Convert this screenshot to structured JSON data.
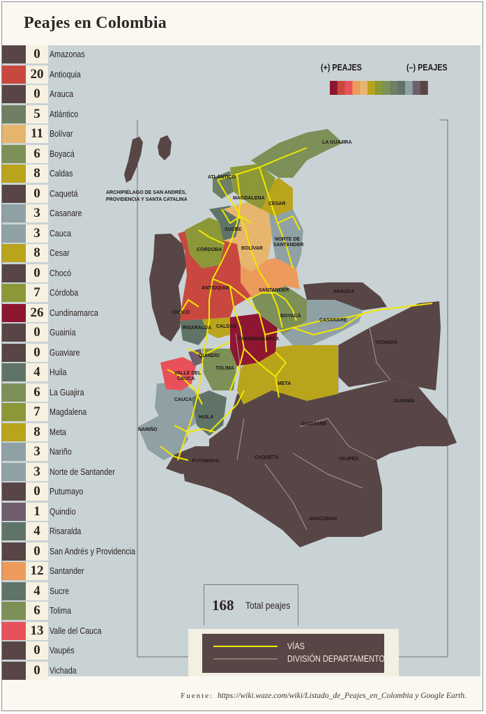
{
  "title": "Peajes en Colombia",
  "departments": [
    {
      "name": "Amazonas",
      "value": "0",
      "color": "#574645"
    },
    {
      "name": "Antioquia",
      "value": "20",
      "color": "#c8483f"
    },
    {
      "name": "Arauca",
      "value": "0",
      "color": "#574645"
    },
    {
      "name": "Atlántico",
      "value": "5",
      "color": "#6e7f63"
    },
    {
      "name": "Bolívar",
      "value": "11",
      "color": "#e7b66e"
    },
    {
      "name": "Boyacá",
      "value": "6",
      "color": "#7d9058"
    },
    {
      "name": "Caldas",
      "value": "8",
      "color": "#b9a41c"
    },
    {
      "name": "Caquetá",
      "value": "0",
      "color": "#574645"
    },
    {
      "name": "Casanare",
      "value": "3",
      "color": "#8fa1a4"
    },
    {
      "name": "Cauca",
      "value": "3",
      "color": "#8fa1a4"
    },
    {
      "name": "Cesar",
      "value": "8",
      "color": "#b9a41c"
    },
    {
      "name": "Chocó",
      "value": "0",
      "color": "#574645"
    },
    {
      "name": "Córdoba",
      "value": "7",
      "color": "#8c9838"
    },
    {
      "name": "Cundinamarca",
      "value": "26",
      "color": "#8d1631"
    },
    {
      "name": "Guainía",
      "value": "0",
      "color": "#574645"
    },
    {
      "name": "Guaviare",
      "value": "0",
      "color": "#574645"
    },
    {
      "name": "Huila",
      "value": "4",
      "color": "#5f7467"
    },
    {
      "name": "La Guajira",
      "value": "6",
      "color": "#7d9058"
    },
    {
      "name": "Magdalena",
      "value": "7",
      "color": "#8c9838"
    },
    {
      "name": "Meta",
      "value": "8",
      "color": "#b9a41c"
    },
    {
      "name": "Nariño",
      "value": "3",
      "color": "#8fa1a4"
    },
    {
      "name": "Norte de Santander",
      "value": "3",
      "color": "#8fa1a4"
    },
    {
      "name": "Putumayo",
      "value": "0",
      "color": "#574645"
    },
    {
      "name": "Quindío",
      "value": "1",
      "color": "#6e5e6e"
    },
    {
      "name": "Risaralda",
      "value": "4",
      "color": "#5f7467"
    },
    {
      "name": "San Andrés y Providencia",
      "value": "0",
      "color": "#574645"
    },
    {
      "name": "Santander",
      "value": "12",
      "color": "#ed9b5c"
    },
    {
      "name": "Sucre",
      "value": "4",
      "color": "#5f7467"
    },
    {
      "name": "Tolima",
      "value": "6",
      "color": "#7d9058"
    },
    {
      "name": "Valle del Cauca",
      "value": "13",
      "color": "#e8515a"
    },
    {
      "name": "Vaupés",
      "value": "0",
      "color": "#574645"
    },
    {
      "name": "Vichada",
      "value": "0",
      "color": "#574645"
    }
  ],
  "scale": {
    "more_label": "(+) PEAJES",
    "less_label": "(–) PEAJES",
    "colors": [
      "#8d1631",
      "#c8483f",
      "#e8515a",
      "#ed9b5c",
      "#e7b66e",
      "#b9a41c",
      "#8c9838",
      "#7d9058",
      "#6e7f63",
      "#5f7467",
      "#8fa1a4",
      "#6e5e6e",
      "#574645"
    ]
  },
  "map_labels": {
    "la_guajira": "LA GUAJIRA",
    "atlantico": "ATLÁNTICO",
    "archipielago_1": "ARCHIPIÉLAGO DE SAN ANDRÉS,",
    "archipielago_2": "PROVIDENCIA Y SANTA CATALINA",
    "magdalena": "MAGDALENA",
    "cesar": "CESAR",
    "sucre": "SUCRE",
    "cordoba": "CÓRDOBA",
    "bolivar": "BOLÍVAR",
    "norte_1": "NORTE DE",
    "norte_2": "SANTANDER",
    "antioquia": "ANTIOQUIA",
    "santander": "SANTANDER",
    "arauca": "ARAUCA",
    "choco": "CHOCÓ",
    "boyaca": "BOYACÁ",
    "casanare": "CASANARE",
    "risaralda": "RISARALDA",
    "caldas": "CALDAS",
    "cundinamarca": "CUNDINAMARCA",
    "vichada": "VICHADA",
    "quindio": "QUINDÍO",
    "tolima": "TOLIMA",
    "valle_1": "VALLE DEL",
    "valle_2": "CAUCA",
    "meta": "META",
    "cauca": "CAUCA",
    "guainia": "GUAINÍA",
    "huila": "HUILA",
    "guaviare": "GUAVIARE",
    "narino": "NARIÑO",
    "caqueta": "CAQUETÁ",
    "vaupes": "VAUPÉS",
    "putumayo": "PUTUMAYO",
    "amazonas": "AMAZONAS"
  },
  "total": {
    "value": "168",
    "label": "Total peajes"
  },
  "key": {
    "roads_label": "VÍAS",
    "borders_label": "DIVISIÓN DEPARTAMENTOS",
    "roads_color": "#f2e600",
    "borders_color": "#a59a98"
  },
  "source": {
    "label": "Fuente:",
    "text": "https://wiki.waze.com/wiki/Listado_de_Peajes_en_Colombia y Google Earth."
  }
}
